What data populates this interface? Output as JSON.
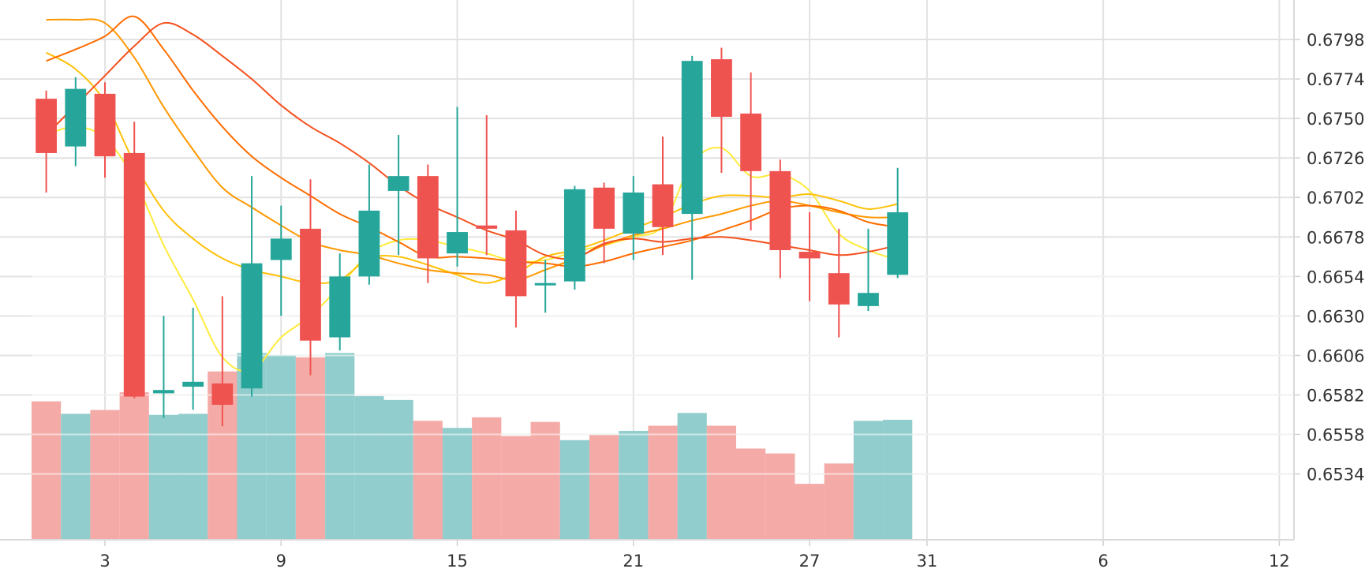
{
  "chart_data": {
    "type": "candlestick",
    "x_tick_labels": [
      "3",
      "9",
      "15",
      "21",
      "27",
      "31",
      "6",
      "12"
    ],
    "x_tick_index": [
      2,
      8,
      14,
      20,
      26,
      30,
      36,
      42
    ],
    "y_tick_labels": [
      "0.6798",
      "0.6774",
      "0.6750",
      "0.6726",
      "0.6702",
      "0.6678",
      "0.6654",
      "0.6630",
      "0.6606",
      "0.6582",
      "0.6558",
      "0.6534"
    ],
    "ylim": [
      0.6494,
      0.6822
    ],
    "xlim": [
      -0.5,
      42.5
    ],
    "grid": true,
    "up_color": "#26a69a",
    "down_color": "#ef5350",
    "up_volume_color": "#91cdcc",
    "down_volume_color": "#f4aaa7",
    "candles": [
      {
        "i": 0,
        "o": 0.6762,
        "h": 0.6767,
        "l": 0.6705,
        "c": 0.6729
      },
      {
        "i": 1,
        "o": 0.6733,
        "h": 0.6775,
        "l": 0.6721,
        "c": 0.6768
      },
      {
        "i": 2,
        "o": 0.6765,
        "h": 0.6772,
        "l": 0.6714,
        "c": 0.6727
      },
      {
        "i": 3,
        "o": 0.6729,
        "h": 0.6748,
        "l": 0.658,
        "c": 0.6581
      },
      {
        "i": 4,
        "o": 0.6583,
        "h": 0.663,
        "l": 0.6568,
        "c": 0.6585
      },
      {
        "i": 5,
        "o": 0.6587,
        "h": 0.6635,
        "l": 0.6573,
        "c": 0.659
      },
      {
        "i": 6,
        "o": 0.6589,
        "h": 0.6642,
        "l": 0.6563,
        "c": 0.6576
      },
      {
        "i": 7,
        "o": 0.6586,
        "h": 0.6715,
        "l": 0.6581,
        "c": 0.6662
      },
      {
        "i": 8,
        "o": 0.6664,
        "h": 0.6697,
        "l": 0.663,
        "c": 0.6677
      },
      {
        "i": 9,
        "o": 0.6683,
        "h": 0.6713,
        "l": 0.6594,
        "c": 0.6615
      },
      {
        "i": 10,
        "o": 0.6617,
        "h": 0.6668,
        "l": 0.6609,
        "c": 0.6654
      },
      {
        "i": 11,
        "o": 0.6654,
        "h": 0.6722,
        "l": 0.6649,
        "c": 0.6694
      },
      {
        "i": 12,
        "o": 0.6706,
        "h": 0.674,
        "l": 0.6667,
        "c": 0.6715
      },
      {
        "i": 13,
        "o": 0.6715,
        "h": 0.6722,
        "l": 0.665,
        "c": 0.6665
      },
      {
        "i": 14,
        "o": 0.6668,
        "h": 0.6757,
        "l": 0.666,
        "c": 0.6681
      },
      {
        "i": 15,
        "o": 0.6685,
        "h": 0.6752,
        "l": 0.6667,
        "c": 0.6683
      },
      {
        "i": 16,
        "o": 0.6682,
        "h": 0.6694,
        "l": 0.6623,
        "c": 0.6642
      },
      {
        "i": 17,
        "o": 0.665,
        "h": 0.6664,
        "l": 0.6632,
        "c": 0.665
      },
      {
        "i": 18,
        "o": 0.6651,
        "h": 0.6709,
        "l": 0.6646,
        "c": 0.6707
      },
      {
        "i": 19,
        "o": 0.6708,
        "h": 0.6711,
        "l": 0.6662,
        "c": 0.6683
      },
      {
        "i": 20,
        "o": 0.668,
        "h": 0.6715,
        "l": 0.6664,
        "c": 0.6705
      },
      {
        "i": 21,
        "o": 0.671,
        "h": 0.6739,
        "l": 0.6667,
        "c": 0.6684
      },
      {
        "i": 22,
        "o": 0.6692,
        "h": 0.6788,
        "l": 0.6652,
        "c": 0.6785
      },
      {
        "i": 23,
        "o": 0.6786,
        "h": 0.6793,
        "l": 0.6717,
        "c": 0.6751
      },
      {
        "i": 24,
        "o": 0.6753,
        "h": 0.6778,
        "l": 0.6682,
        "c": 0.6718
      },
      {
        "i": 25,
        "o": 0.6718,
        "h": 0.6725,
        "l": 0.6653,
        "c": 0.667
      },
      {
        "i": 26,
        "o": 0.6669,
        "h": 0.6693,
        "l": 0.6639,
        "c": 0.6665
      },
      {
        "i": 27,
        "o": 0.6656,
        "h": 0.6683,
        "l": 0.6617,
        "c": 0.6637
      },
      {
        "i": 28,
        "o": 0.6636,
        "h": 0.6683,
        "l": 0.6633,
        "c": 0.6644
      },
      {
        "i": 29,
        "o": 0.6655,
        "h": 0.672,
        "l": 0.6653,
        "c": 0.6693
      }
    ],
    "candle_slots": [
      0,
      1,
      2,
      3,
      4,
      5,
      6,
      7,
      8,
      9,
      10,
      11,
      12,
      13,
      14,
      15,
      16,
      17,
      18,
      19,
      20,
      21,
      22,
      23,
      24,
      25,
      26,
      27,
      28,
      29
    ],
    "volume": {
      "ylim": [
        0.0,
        1.0
      ],
      "bars": [
        {
          "c": 0.51,
          "up": false
        },
        {
          "c": 0.464,
          "up": true
        },
        {
          "c": 0.478,
          "up": false
        },
        {
          "c": 0.543,
          "up": false
        },
        {
          "c": 0.46,
          "up": true
        },
        {
          "c": 0.464,
          "up": true
        },
        {
          "c": 0.62,
          "up": false
        },
        {
          "c": 0.688,
          "up": true
        },
        {
          "c": 0.68,
          "up": true
        },
        {
          "c": 0.672,
          "up": false
        },
        {
          "c": 0.688,
          "up": true
        },
        {
          "c": 0.529,
          "up": true
        },
        {
          "c": 0.515,
          "up": true
        },
        {
          "c": 0.438,
          "up": false
        },
        {
          "c": 0.412,
          "up": true
        },
        {
          "c": 0.451,
          "up": false
        },
        {
          "c": 0.382,
          "up": false
        },
        {
          "c": 0.434,
          "up": false
        },
        {
          "c": 0.367,
          "up": true
        },
        {
          "c": 0.386,
          "up": false
        },
        {
          "c": 0.401,
          "up": true
        },
        {
          "c": 0.42,
          "up": false
        },
        {
          "c": 0.467,
          "up": true
        },
        {
          "c": 0.42,
          "up": false
        },
        {
          "c": 0.336,
          "up": false
        },
        {
          "c": 0.318,
          "up": false
        },
        {
          "c": 0.206,
          "up": false
        },
        {
          "c": 0.281,
          "up": false
        },
        {
          "c": 0.438,
          "up": true
        },
        {
          "c": 0.442,
          "up": true
        }
      ]
    },
    "moving_averages": [
      {
        "color": "#ffeb3b",
        "values": [
          0.674,
          0.6745,
          0.6738,
          0.6713,
          0.6673,
          0.664,
          0.6605,
          0.6597,
          0.6617,
          0.663,
          0.6648,
          0.6668,
          0.6676,
          0.6676,
          0.6672,
          0.6668,
          0.6663,
          0.6664,
          0.6669,
          0.6673,
          0.6678,
          0.6685,
          0.6723,
          0.6732,
          0.6715,
          0.6716,
          0.6706,
          0.668,
          0.667,
          0.6664
        ]
      },
      {
        "color": "#ffc107",
        "values": [
          0.679,
          0.678,
          0.676,
          0.6723,
          0.6694,
          0.6677,
          0.6665,
          0.6658,
          0.6654,
          0.665,
          0.6652,
          0.6665,
          0.6666,
          0.6661,
          0.6655,
          0.665,
          0.6656,
          0.6666,
          0.667,
          0.6676,
          0.6683,
          0.669,
          0.6698,
          0.6703,
          0.6703,
          0.6702,
          0.6704,
          0.67,
          0.6695,
          0.6698
        ]
      },
      {
        "color": "#ff9800",
        "values": [
          0.681,
          0.681,
          0.6808,
          0.6787,
          0.6757,
          0.6731,
          0.6708,
          0.6696,
          0.6685,
          0.6675,
          0.667,
          0.6667,
          0.6662,
          0.6658,
          0.6656,
          0.6655,
          0.6652,
          0.6658,
          0.6665,
          0.6673,
          0.6679,
          0.6683,
          0.6688,
          0.6692,
          0.6697,
          0.67,
          0.6697,
          0.6693,
          0.669,
          0.669
        ]
      },
      {
        "color": "#ff6d00",
        "values": [
          0.6785,
          0.6792,
          0.68,
          0.6812,
          0.6792,
          0.6767,
          0.6745,
          0.6727,
          0.6714,
          0.6703,
          0.6692,
          0.6684,
          0.6675,
          0.6666,
          0.6666,
          0.6665,
          0.6663,
          0.6662,
          0.666,
          0.6663,
          0.6668,
          0.6672,
          0.6676,
          0.6682,
          0.6688,
          0.6695,
          0.6697,
          0.6694,
          0.6687,
          0.6684
        ]
      },
      {
        "color": "#f4511e",
        "values": [
          0.674,
          0.6758,
          0.6776,
          0.6794,
          0.6808,
          0.6801,
          0.6788,
          0.6774,
          0.6758,
          0.6745,
          0.6735,
          0.6723,
          0.6709,
          0.6698,
          0.669,
          0.6682,
          0.6676,
          0.6667,
          0.6665,
          0.6674,
          0.6677,
          0.6675,
          0.6677,
          0.6678,
          0.6676,
          0.6673,
          0.667,
          0.6667,
          0.6669,
          0.6673
        ]
      }
    ]
  }
}
